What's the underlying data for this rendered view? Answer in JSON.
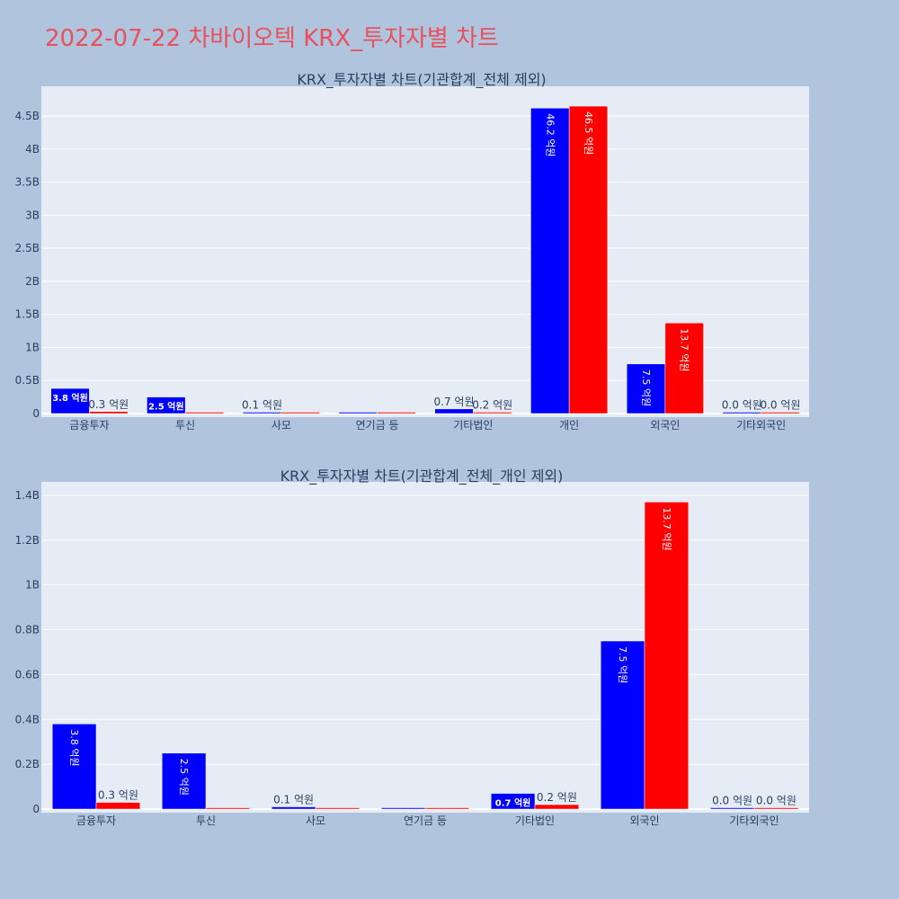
{
  "page_title": "2022-07-22 차바이오텍 KRX_투자자별 차트",
  "colors": {
    "background": "#b0c4de",
    "plot_bg": "#e5ecf6",
    "title": "#e8505b",
    "series_a": "#0000ff",
    "series_b": "#ff0000"
  },
  "chart_data": [
    {
      "type": "bar",
      "title": "KRX_투자자별 차트(기관합계_전체 제외)",
      "categories": [
        "금융투자",
        "투신",
        "사모",
        "연기금 등",
        "기타법인",
        "개인",
        "외국인",
        "기타외국인"
      ],
      "yticks": [
        "0",
        "0.5B",
        "1B",
        "1.5B",
        "2B",
        "2.5B",
        "3B",
        "3.5B",
        "4B",
        "4.5B"
      ],
      "ylim": [
        0,
        4.95
      ],
      "grid": true,
      "series": [
        {
          "color": "#0000ff",
          "values": [
            0.38,
            0.25,
            0.01,
            0.0,
            0.07,
            4.62,
            0.75,
            0.0
          ],
          "labels": [
            "3.8 억원",
            "2.5 억원",
            "0.1 억원",
            "",
            "0.7 억원",
            "46.2 억원",
            "7.5 억원",
            "0.0 억원"
          ]
        },
        {
          "color": "#ff0000",
          "values": [
            0.03,
            0.0,
            0.0,
            0.0,
            0.02,
            4.65,
            1.37,
            0.0
          ],
          "labels": [
            "0.3 억원",
            "",
            "",
            "",
            "0.2 억원",
            "46.5 억원",
            "13.7 억원",
            "0.0 억원"
          ]
        }
      ]
    },
    {
      "type": "bar",
      "title": "KRX_투자자별 차트(기관합계_전체_개인 제외)",
      "categories": [
        "금융투자",
        "투신",
        "사모",
        "연기금 등",
        "기타법인",
        "외국인",
        "기타외국인"
      ],
      "yticks": [
        "0",
        "0.2B",
        "0.4B",
        "0.6B",
        "0.8B",
        "1B",
        "1.2B",
        "1.4B"
      ],
      "ylim": [
        0,
        1.46
      ],
      "grid": true,
      "series": [
        {
          "color": "#0000ff",
          "values": [
            0.38,
            0.25,
            0.01,
            0.0,
            0.07,
            0.75,
            0.0
          ],
          "labels": [
            "3.8 억원",
            "2.5 억원",
            "0.1 억원",
            "",
            "0.7 억원",
            "7.5 억원",
            "0.0 억원"
          ]
        },
        {
          "color": "#ff0000",
          "values": [
            0.03,
            0.0,
            0.0,
            0.0,
            0.02,
            1.37,
            0.0
          ],
          "labels": [
            "0.3 억원",
            "",
            "",
            "",
            "0.2 억원",
            "13.7 억원",
            "0.0 억원"
          ]
        }
      ]
    }
  ]
}
